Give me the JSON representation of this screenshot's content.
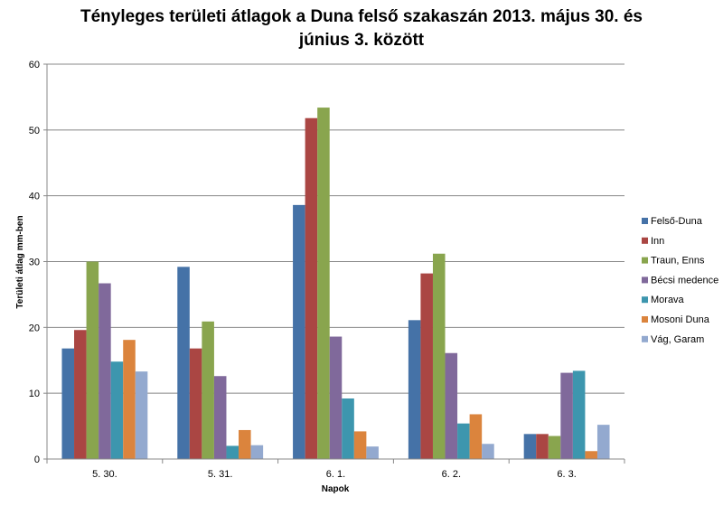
{
  "chart_data": {
    "type": "bar",
    "title_line1": "Tényleges területi átlagok a Duna felső szakaszán 2013. május 30. és",
    "title_line2": "június 3. között",
    "xlabel": "Napok",
    "ylabel": "Területi átlag mm-ben",
    "ylim": [
      0,
      60
    ],
    "yticks": [
      0,
      10,
      20,
      30,
      40,
      50,
      60
    ],
    "grid": true,
    "legend_position": "right",
    "categories": [
      "5. 30.",
      "5. 31.",
      "6. 1.",
      "6. 2.",
      "6. 3."
    ],
    "series": [
      {
        "name": "Felső-Duna",
        "color": "#4572A7",
        "values": [
          16.8,
          29.2,
          38.6,
          21.1,
          3.8
        ]
      },
      {
        "name": "Inn",
        "color": "#AA4643",
        "values": [
          19.6,
          16.8,
          51.8,
          28.2,
          3.8
        ]
      },
      {
        "name": "Traun, Enns",
        "color": "#89A54E",
        "values": [
          30.0,
          20.9,
          53.4,
          31.2,
          3.5
        ]
      },
      {
        "name": "Bécsi medence",
        "color": "#80699B",
        "values": [
          26.7,
          12.6,
          18.6,
          16.1,
          13.1
        ]
      },
      {
        "name": "Morava",
        "color": "#3D96AE",
        "values": [
          14.8,
          2.0,
          9.2,
          5.4,
          13.4
        ]
      },
      {
        "name": "Mosoni Duna",
        "color": "#DB843D",
        "values": [
          18.1,
          4.4,
          4.2,
          6.8,
          1.2
        ]
      },
      {
        "name": "Vág, Garam",
        "color": "#93A9CF",
        "values": [
          13.3,
          2.1,
          1.9,
          2.3,
          5.2
        ]
      }
    ]
  }
}
